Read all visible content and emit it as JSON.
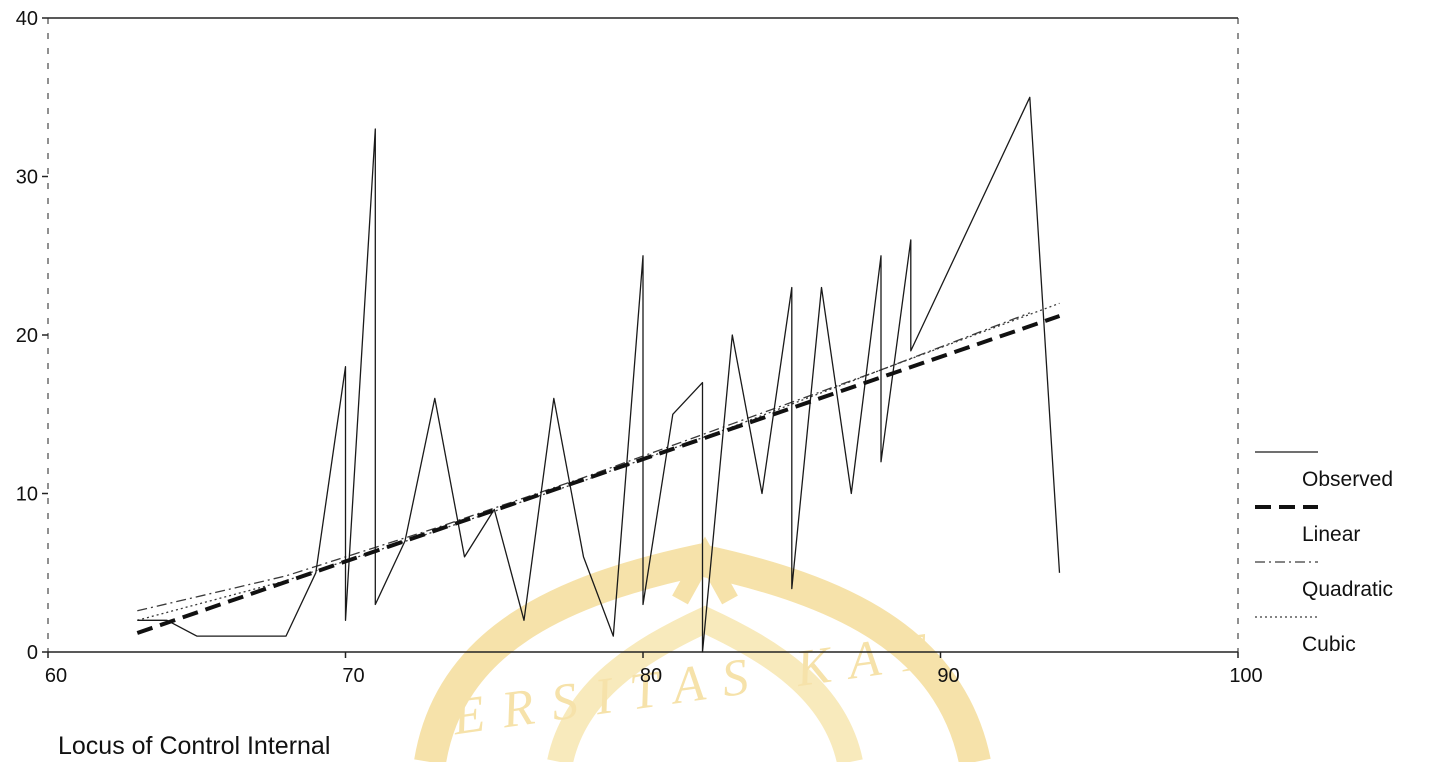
{
  "chart_data": {
    "type": "line",
    "title": "",
    "xlabel": "Locus of Control Internal",
    "ylabel": "",
    "xlim": [
      60,
      100
    ],
    "ylim": [
      0,
      40
    ],
    "x_ticks": [
      "60",
      "70",
      "80",
      "90",
      "100"
    ],
    "y_ticks": [
      "0",
      "10",
      "20",
      "30",
      "40"
    ],
    "grid": false,
    "legend_position": "right",
    "series": [
      {
        "name": "Observed",
        "style": "solid-thin",
        "x": [
          63,
          64,
          65,
          66,
          68,
          69,
          70,
          70,
          71,
          71,
          72,
          73,
          74,
          75,
          76,
          77,
          78,
          79,
          80,
          80,
          81,
          82,
          82,
          83,
          84,
          85,
          85,
          86,
          87,
          88,
          88,
          89,
          89,
          93,
          94
        ],
        "y": [
          2,
          2,
          1,
          1,
          1,
          5,
          18,
          2,
          33,
          3,
          7,
          16,
          6,
          9,
          2,
          16,
          6,
          1,
          25,
          3,
          15,
          17,
          0,
          20,
          10,
          23,
          4,
          23,
          10,
          25,
          12,
          26,
          19,
          35,
          5
        ]
      },
      {
        "name": "Linear",
        "style": "dashed-bold",
        "x": [
          63,
          94
        ],
        "y": [
          1.2,
          21.2
        ]
      },
      {
        "name": "Quadratic",
        "style": "dash-dot",
        "x": [
          63,
          68,
          73,
          78,
          83,
          88,
          93
        ],
        "y": [
          2.6,
          4.8,
          7.8,
          11.0,
          14.4,
          17.8,
          21.4
        ]
      },
      {
        "name": "Cubic",
        "style": "dotted",
        "x": [
          63,
          68,
          73,
          78,
          83,
          88,
          94
        ],
        "y": [
          2.0,
          4.5,
          7.6,
          10.8,
          14.2,
          17.8,
          22.0
        ]
      }
    ]
  },
  "watermark": {
    "text": "ERSITAS KAT",
    "color": "#f3d98e"
  }
}
